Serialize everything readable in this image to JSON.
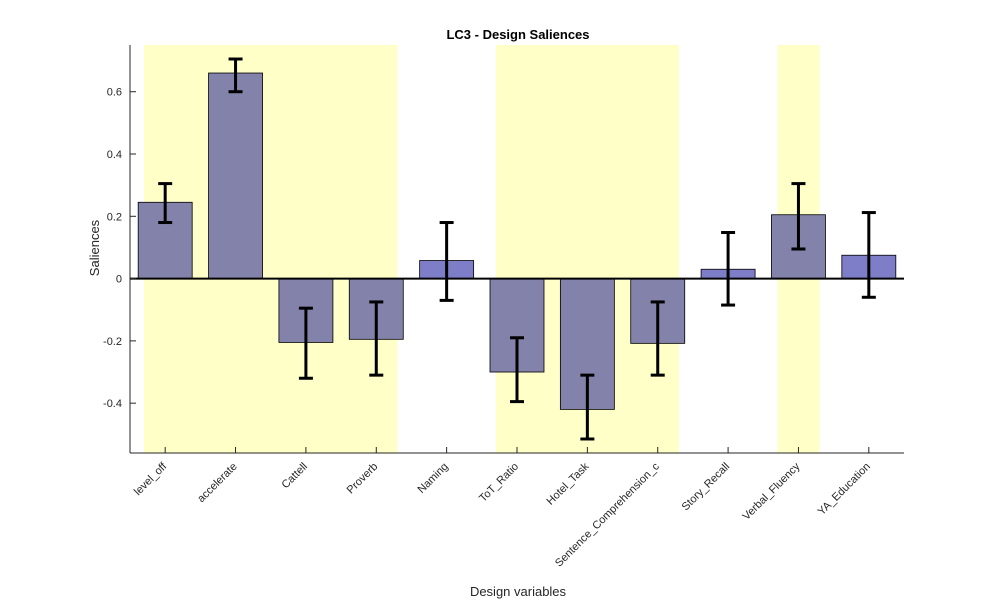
{
  "chart_data": {
    "type": "bar",
    "title": "LC3 - Design Saliences",
    "xlabel": "Design variables",
    "ylabel": "Saliences",
    "ylim": [
      -0.56,
      0.75
    ],
    "yticks": [
      -0.4,
      -0.2,
      0,
      0.2,
      0.4,
      0.6
    ],
    "ytick_labels": [
      "-0.4",
      "-0.2",
      "0",
      "0.2",
      "0.4",
      "0.6"
    ],
    "categories": [
      "level_off",
      "accelerate",
      "Cattell",
      "Proverb",
      "Naming",
      "ToT_Ratio",
      "Hotel_Task",
      "Sentence_Comprehension_c",
      "Story_Recall",
      "Verbal_Fluency",
      "YA_Education"
    ],
    "values": [
      0.245,
      0.66,
      -0.205,
      -0.195,
      0.058,
      -0.3,
      -0.42,
      -0.208,
      0.03,
      0.205,
      0.075
    ],
    "error_low": [
      0.18,
      0.6,
      -0.32,
      -0.31,
      -0.07,
      -0.395,
      -0.515,
      -0.31,
      -0.085,
      0.095,
      -0.06
    ],
    "error_high": [
      0.305,
      0.705,
      -0.095,
      -0.075,
      0.18,
      -0.19,
      -0.31,
      -0.075,
      0.148,
      0.305,
      0.212
    ],
    "highlighted_groups": [
      [
        0,
        3
      ],
      [
        5,
        7
      ],
      [
        9,
        9
      ]
    ],
    "colors": {
      "highlight_band": "#ffffc8",
      "bar_muted": "#8282aa",
      "bar_bright": "#7d7dc8",
      "bar_edge": "#000000",
      "error_bar": "#000000"
    },
    "grid": false,
    "legend": "none"
  }
}
